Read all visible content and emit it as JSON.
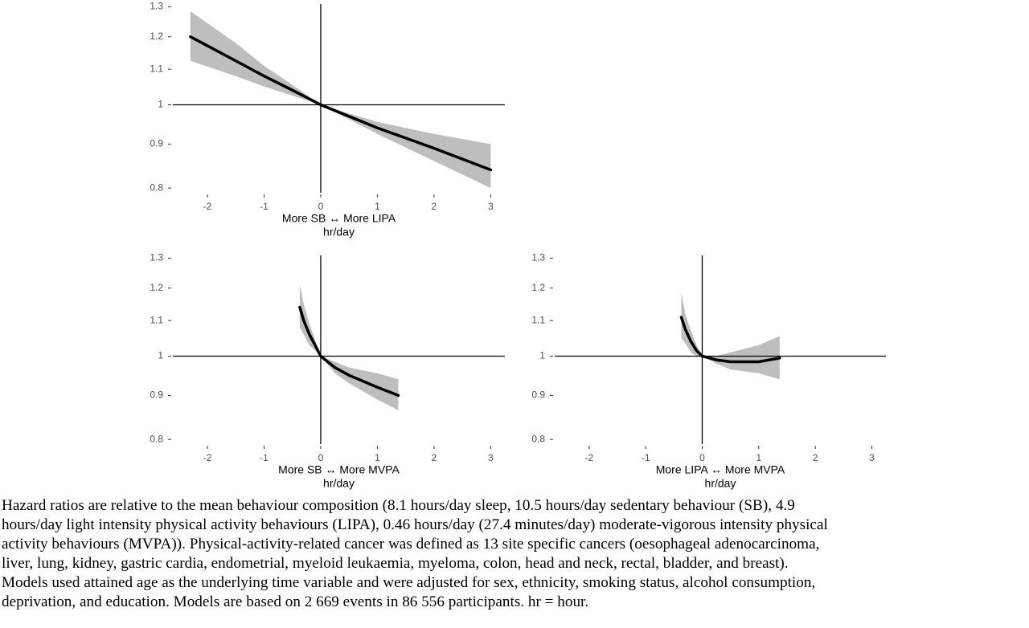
{
  "chart_data": [
    {
      "type": "line",
      "ylog": true,
      "color": "#000000",
      "band_color": "#bebebe",
      "xlim": [
        -2.61,
        3.25
      ],
      "ylim": [
        0.79,
        1.31
      ],
      "xticks": [
        -2,
        -1,
        0,
        1,
        2,
        3
      ],
      "yticks": [
        1.3,
        1.2,
        1.1,
        1,
        0.9,
        0.8
      ],
      "hline": 1,
      "vline": 0,
      "x_label": "More SB ↔ More LIPA",
      "x_unit": "hr/day",
      "x": [
        -2.3,
        -1.5,
        -1,
        -0.5,
        0,
        1,
        2,
        3
      ],
      "values": [
        1.2,
        1.125,
        1.08,
        1.04,
        1,
        0.94,
        0.89,
        0.84
      ],
      "ci_lower": [
        1.125,
        1.08,
        1.05,
        1.025,
        1,
        0.925,
        0.86,
        0.8
      ],
      "ci_upper": [
        1.285,
        1.18,
        1.11,
        1.055,
        1,
        0.955,
        0.925,
        0.9
      ]
    },
    {
      "type": "line",
      "ylog": true,
      "color": "#000000",
      "band_color": "#bebebe",
      "xlim": [
        -2.61,
        3.25
      ],
      "ylim": [
        0.79,
        1.31
      ],
      "xticks": [
        -2,
        -1,
        0,
        1,
        2,
        3
      ],
      "yticks": [
        1.3,
        1.2,
        1.1,
        1,
        0.9,
        0.8
      ],
      "hline": 1,
      "vline": 0,
      "x_label": "More SB ↔ More MVPA",
      "x_unit": "hr/day",
      "x": [
        -0.37,
        -0.3,
        -0.2,
        -0.1,
        0,
        0.25,
        0.5,
        1,
        1.37
      ],
      "values": [
        1.14,
        1.1,
        1.06,
        1.03,
        1,
        0.97,
        0.95,
        0.92,
        0.9
      ],
      "ci_lower": [
        1.08,
        1.06,
        1.03,
        1.015,
        1,
        0.955,
        0.93,
        0.89,
        0.865
      ],
      "ci_upper": [
        1.21,
        1.15,
        1.09,
        1.045,
        1,
        0.985,
        0.97,
        0.955,
        0.94
      ]
    },
    {
      "type": "line",
      "ylog": true,
      "color": "#000000",
      "band_color": "#bebebe",
      "xlim": [
        -2.61,
        3.25
      ],
      "ylim": [
        0.79,
        1.31
      ],
      "xticks": [
        -2,
        -1,
        0,
        1,
        2,
        3
      ],
      "yticks": [
        1.3,
        1.2,
        1.1,
        1,
        0.9,
        0.8
      ],
      "hline": 1,
      "vline": 0,
      "x_label": "More LIPA ↔ More MVPA",
      "x_unit": "hr/day",
      "x": [
        -0.37,
        -0.3,
        -0.2,
        -0.1,
        0,
        0.25,
        0.5,
        1,
        1.37
      ],
      "values": [
        1.11,
        1.075,
        1.04,
        1.015,
        1,
        0.99,
        0.985,
        0.985,
        0.995
      ],
      "ci_lower": [
        1.05,
        1.035,
        1.01,
        1.0,
        1,
        0.98,
        0.965,
        0.955,
        0.94
      ],
      "ci_upper": [
        1.185,
        1.12,
        1.07,
        1.03,
        1,
        1.0,
        1.01,
        1.03,
        1.055
      ]
    }
  ],
  "caption": [
    "Hazard ratios are relative to the mean behaviour composition (8.1 hours/day sleep, 10.5 hours/day sedentary behaviour (SB), 4.9",
    "hours/day light intensity physical activity behaviours (LIPA), 0.46 hours/day (27.4 minutes/day) moderate-vigorous intensity physical",
    "activity behaviours (MVPA)). Physical-activity-related cancer was defined as 13 site specific cancers (oesophageal adenocarcinoma,",
    "liver, lung, kidney, gastric cardia, endometrial, myeloid leukaemia, myeloma, colon, head and neck, rectal, bladder, and breast).",
    "Models used attained age as the underlying time variable and were adjusted for sex, ethnicity, smoking status, alcohol consumption,",
    "deprivation, and education. Models are based on 2 669 events in 86 556 participants. hr = hour."
  ]
}
